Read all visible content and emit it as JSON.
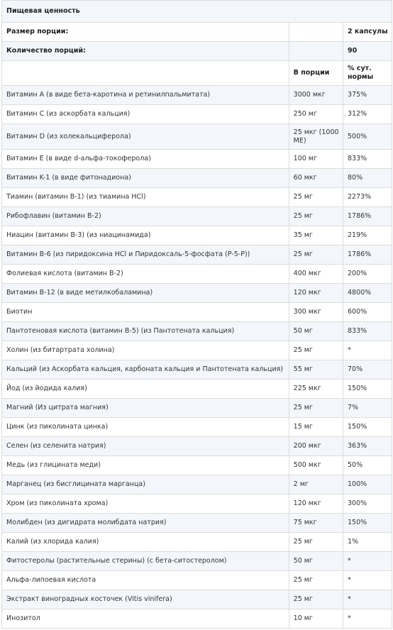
{
  "title": "Пищевая ценность",
  "serving_size": {
    "label": "Размер порции:",
    "value": "2 капсулы"
  },
  "servings_count": {
    "label": "Количество порций:",
    "value": "90"
  },
  "columns": {
    "per_serving": "В порции",
    "daily_value": "% сут. нормы"
  },
  "rows": [
    {
      "name": "Витамин A (в виде бета-каротина и ретинилпальмитата)",
      "amount": "3000 мкг",
      "dv": "375%"
    },
    {
      "name": "Витамин C (из аскорбата кальция)",
      "amount": "250 мг",
      "dv": "312%"
    },
    {
      "name": "Витамин D (из холекальциферола)",
      "amount": "25 мкг (1000 МЕ)",
      "dv": "500%"
    },
    {
      "name": "Витамин E (в виде d-альфа-токоферола)",
      "amount": "100 мг",
      "dv": "833%"
    },
    {
      "name": "Витамин K-1 (в виде фитонадиона)",
      "amount": "60 мкг",
      "dv": "80%"
    },
    {
      "name": "Тиамин (витамин B-1) (из тиамина HCl)",
      "amount": "25 мг",
      "dv": "2273%"
    },
    {
      "name": "Рибофлавин (витамин B-2)",
      "amount": "25 мг",
      "dv": "1786%"
    },
    {
      "name": "Ниацин (витамин B-3) (из ниацинамида)",
      "amount": "35 мг",
      "dv": "219%"
    },
    {
      "name": "Витамин B-6 (из пиридоксина HCl и Пиридоксаль-5-фосфата (P-5-P))",
      "amount": "25 мг",
      "dv": "1786%"
    },
    {
      "name": "Фолиевая кислота (витамин B-2)",
      "amount": "400 мкг",
      "dv": "200%"
    },
    {
      "name": "Витамин B-12 (в виде метилкобаламина)",
      "amount": "120 мкг",
      "dv": "4800%"
    },
    {
      "name": "Биотин",
      "amount": "300 мкг",
      "dv": "600%"
    },
    {
      "name": "Пантотеновая кислота (витамин B-5) (из Пантотената кальция)",
      "amount": "50 мг",
      "dv": "833%"
    },
    {
      "name": "Холин (из битартрата холина)",
      "amount": "25 мг",
      "dv": "*"
    },
    {
      "name": "Кальций (из Аскорбата кальция, карбоната кальция и Пантотената кальция)",
      "amount": "55 мг",
      "dv": "70%"
    },
    {
      "name": "Йод (из йодида калия)",
      "amount": "225 мкг",
      "dv": "150%"
    },
    {
      "name": "Магний (Из цитрата магния)",
      "amount": "25 мг",
      "dv": "7%"
    },
    {
      "name": "Цинк (из пиколината цинка)",
      "amount": "15 мг",
      "dv": "150%"
    },
    {
      "name": "Селен (из селенита натрия)",
      "amount": "200 мкг",
      "dv": "363%"
    },
    {
      "name": "Медь (из глицината меди)",
      "amount": "500 мкг",
      "dv": "50%"
    },
    {
      "name": "Марганец (из бисглицината марганца)",
      "amount": "2 мг",
      "dv": "100%"
    },
    {
      "name": "Хром (из пиколината хрома)",
      "amount": "120 мкг",
      "dv": "300%"
    },
    {
      "name": "Молибден (из дигидрата молибдата натрия)",
      "amount": "75 мкг",
      "dv": "150%"
    },
    {
      "name": "Калий (из хлорида калия)",
      "amount": "25 мг",
      "dv": "1%"
    },
    {
      "name": "Фитостеролы (растительные стерины) (с бета-ситостеролом)",
      "amount": "50 мг",
      "dv": "*"
    },
    {
      "name": "Альфа-липоевая кислота",
      "amount": "25 мг",
      "dv": "*"
    },
    {
      "name": "Экстракт виноградных косточек (Vitis vinifera)",
      "amount": "25 мг",
      "dv": "*"
    },
    {
      "name": "Инозитол",
      "amount": "10 мг",
      "dv": "*"
    }
  ]
}
